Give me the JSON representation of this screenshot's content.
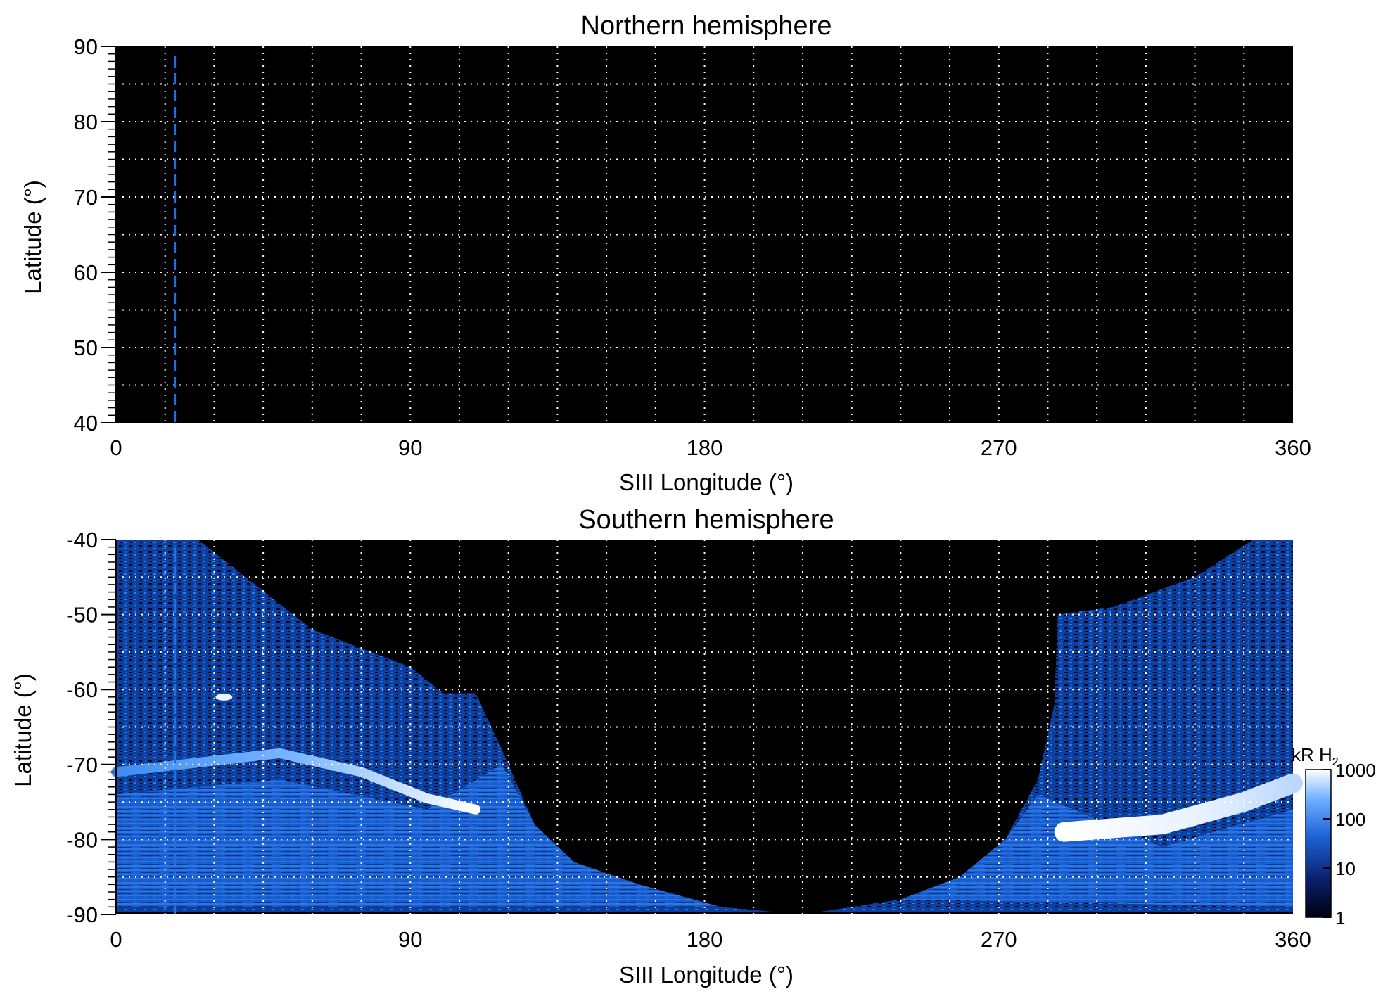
{
  "colors": {
    "background": "#000000",
    "emission_dim": "#0a3a8a",
    "emission_mid": "#1e6fe0",
    "emission_bright": "#ffffff",
    "grid": "#ffffff",
    "marker_line": "#1e6fe0"
  },
  "chart_data": [
    {
      "type": "heatmap",
      "title": "Northern hemisphere",
      "xlabel": "SIII Longitude (°)",
      "ylabel": "Latitude (°)",
      "xlim": [
        0,
        360
      ],
      "ylim": [
        40,
        90
      ],
      "x_ticks": [
        "0",
        "90",
        "180",
        "270",
        "360"
      ],
      "y_ticks": [
        "40",
        "50",
        "60",
        "70",
        "80",
        "90"
      ],
      "grid": true,
      "grid_x_step": 15,
      "grid_y_step": 5,
      "marker_longitude": 18,
      "intensity_kR": "no emission (black everywhere)"
    },
    {
      "type": "heatmap",
      "title": "Southern hemisphere",
      "xlabel": "SIII Longitude (°)",
      "ylabel": "Latitude (°)",
      "xlim": [
        0,
        360
      ],
      "ylim": [
        -90,
        -40
      ],
      "x_ticks": [
        "0",
        "90",
        "180",
        "270",
        "360"
      ],
      "y_ticks": [
        "-90",
        "-80",
        "-70",
        "-60",
        "-50",
        "-40"
      ],
      "grid": true,
      "grid_x_step": 15,
      "grid_y_step": 5,
      "marker_longitude": 18,
      "colorbar": {
        "label": "kR H",
        "label_subscript": "2",
        "scale": "log",
        "ticks": [
          "1",
          "10",
          "100",
          "1000"
        ],
        "range": [
          1,
          1000
        ]
      },
      "main_oval": {
        "description": "bright auroral oval",
        "points": [
          {
            "lon": 0,
            "lat": -71
          },
          {
            "lon": 20,
            "lat": -70
          },
          {
            "lon": 50,
            "lat": -68.5
          },
          {
            "lon": 75,
            "lat": -71
          },
          {
            "lon": 95,
            "lat": -74.5
          },
          {
            "lon": 110,
            "lat": -76
          },
          {
            "lon": 290,
            "lat": -79
          },
          {
            "lon": 320,
            "lat": -78
          },
          {
            "lon": 345,
            "lat": -75
          },
          {
            "lon": 360,
            "lat": -72.5
          }
        ]
      },
      "bright_spot": {
        "lon": 33,
        "lat": -61
      },
      "no_data_boundary": [
        {
          "lon": 100,
          "lat": -60.5
        },
        {
          "lon": 110,
          "lat": -60.5
        },
        {
          "lon": 118,
          "lat": -68
        },
        {
          "lon": 128,
          "lat": -78
        },
        {
          "lon": 140,
          "lat": -83
        },
        {
          "lon": 160,
          "lat": -86
        },
        {
          "lon": 185,
          "lat": -89
        },
        {
          "lon": 210,
          "lat": -90
        },
        {
          "lon": 240,
          "lat": -88
        },
        {
          "lon": 258,
          "lat": -85
        },
        {
          "lon": 272,
          "lat": -80
        },
        {
          "lon": 282,
          "lat": -72
        },
        {
          "lon": 287,
          "lat": -62
        },
        {
          "lon": 288,
          "lat": -50
        },
        {
          "lon": 305,
          "lat": -49
        },
        {
          "lon": 330,
          "lat": -45
        },
        {
          "lon": 348,
          "lat": -40
        }
      ]
    }
  ]
}
